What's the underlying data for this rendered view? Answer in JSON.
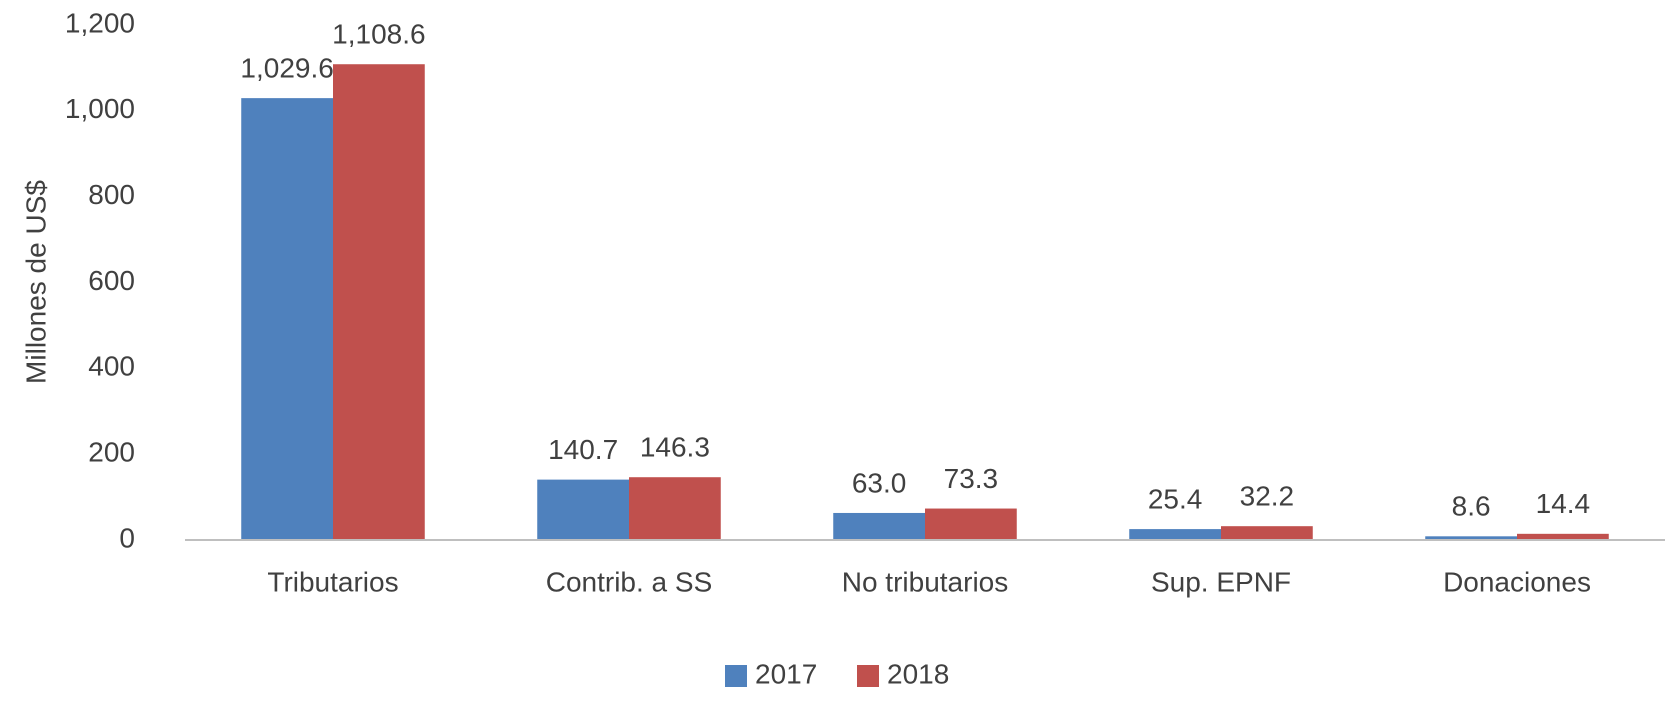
{
  "chart_data": {
    "type": "bar",
    "y_label": "Millones de US$",
    "categories": [
      "Tributarios",
      "Contrib. a SS",
      "No tributarios",
      "Sup. EPNF",
      "Donaciones"
    ],
    "series": [
      {
        "name": "2017",
        "color": "#4f81bd",
        "values": [
          1029.6,
          140.7,
          63.0,
          25.4,
          8.6
        ],
        "value_labels": [
          "1,029.6",
          "140.7",
          "63.0",
          "25.4",
          "8.6"
        ]
      },
      {
        "name": "2018",
        "color": "#c0504d",
        "values": [
          1108.6,
          146.3,
          73.3,
          32.2,
          14.4
        ],
        "value_labels": [
          "1,108.6",
          "146.3",
          "73.3",
          "32.2",
          "14.4"
        ]
      }
    ],
    "ylim": [
      0,
      1200
    ],
    "yticks": [
      0,
      200,
      400,
      600,
      800,
      {
        "value": 1000,
        "label": "1,000"
      },
      {
        "value": 1200,
        "label": "1,200"
      }
    ],
    "grid": false,
    "legend": "bottom"
  }
}
